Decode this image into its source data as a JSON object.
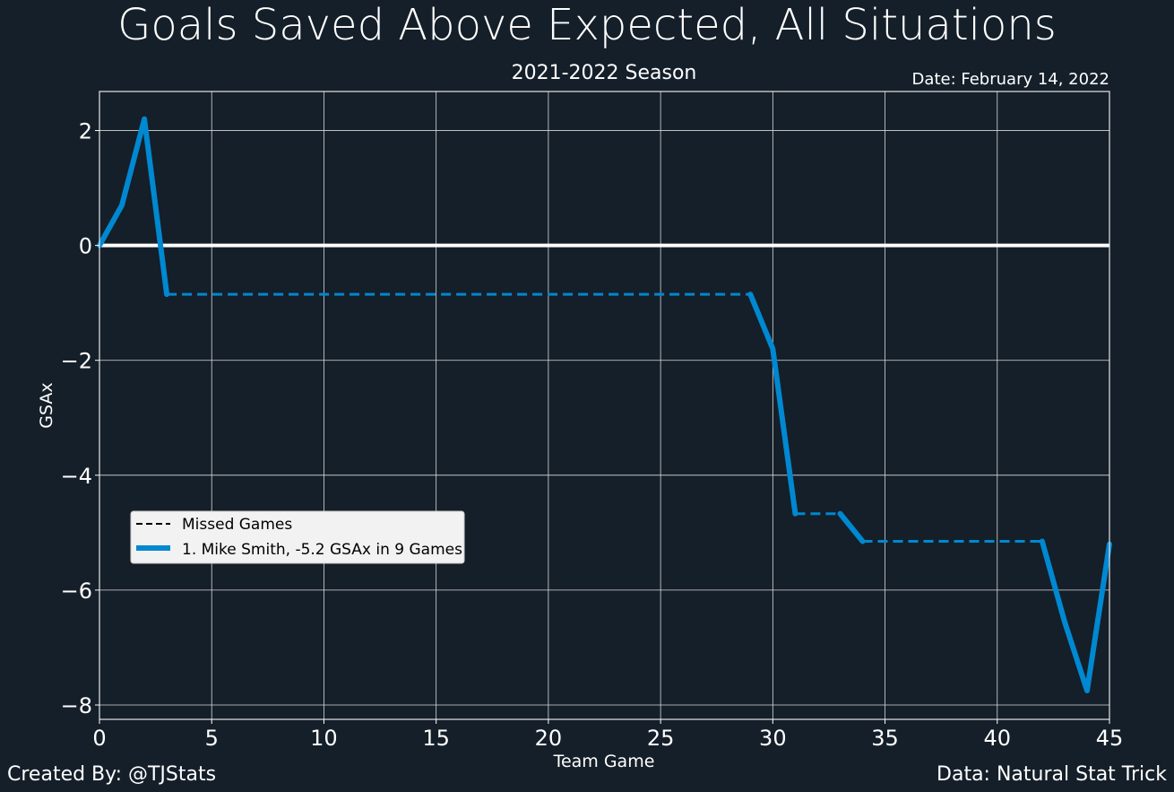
{
  "chart_data": {
    "type": "line",
    "title": "Goals Saved Above Expected, All Situations",
    "subtitle": "2021-2022 Season",
    "date_label": "Date: February 14, 2022",
    "xlabel": "Team Game",
    "ylabel": "GSAx",
    "xlim": [
      0,
      45
    ],
    "ylim": [
      -8.25,
      2.68
    ],
    "xticks": [
      0,
      5,
      10,
      15,
      20,
      25,
      30,
      35,
      40,
      45
    ],
    "yticks": [
      2,
      0,
      -2,
      -4,
      -6,
      -8
    ],
    "ytick_labels": [
      "2",
      "0",
      "−2",
      "−4",
      "−6",
      "−8"
    ],
    "grid": true,
    "zero_line": 0,
    "legend_position": "lower-left",
    "legend": {
      "missed_label": "Missed Games",
      "series_label": "1. Mike Smith, -5.2 GSAx in 9 Games"
    },
    "series": [
      {
        "name": "1. Mike Smith, -5.2 GSAx in 9 Games",
        "color": "#0088d1",
        "segments": [
          {
            "style": "solid",
            "x": [
              0,
              1,
              2,
              3
            ],
            "y": [
              0.0,
              0.7,
              2.2,
              -0.85
            ]
          },
          {
            "style": "dashed",
            "x": [
              3,
              29
            ],
            "y": [
              -0.85,
              -0.85
            ]
          },
          {
            "style": "solid",
            "x": [
              29,
              30,
              31
            ],
            "y": [
              -0.85,
              -1.8,
              -4.67
            ]
          },
          {
            "style": "dashed",
            "x": [
              31,
              33
            ],
            "y": [
              -4.67,
              -4.67
            ]
          },
          {
            "style": "solid",
            "x": [
              33,
              34
            ],
            "y": [
              -4.67,
              -5.15
            ]
          },
          {
            "style": "dashed",
            "x": [
              34,
              42
            ],
            "y": [
              -5.15,
              -5.15
            ]
          },
          {
            "style": "solid",
            "x": [
              42,
              43,
              44,
              45
            ],
            "y": [
              -5.15,
              -6.55,
              -7.75,
              -5.2
            ]
          }
        ]
      }
    ]
  },
  "footer": {
    "created_by": "Created By: @TJStats",
    "data_source": "Data: Natural Stat Trick"
  },
  "colors": {
    "background": "#151f29",
    "series": "#0088d1",
    "grid": "#d9d9d9",
    "text": "#ffffff",
    "legend_bg": "#f2f2f2"
  }
}
